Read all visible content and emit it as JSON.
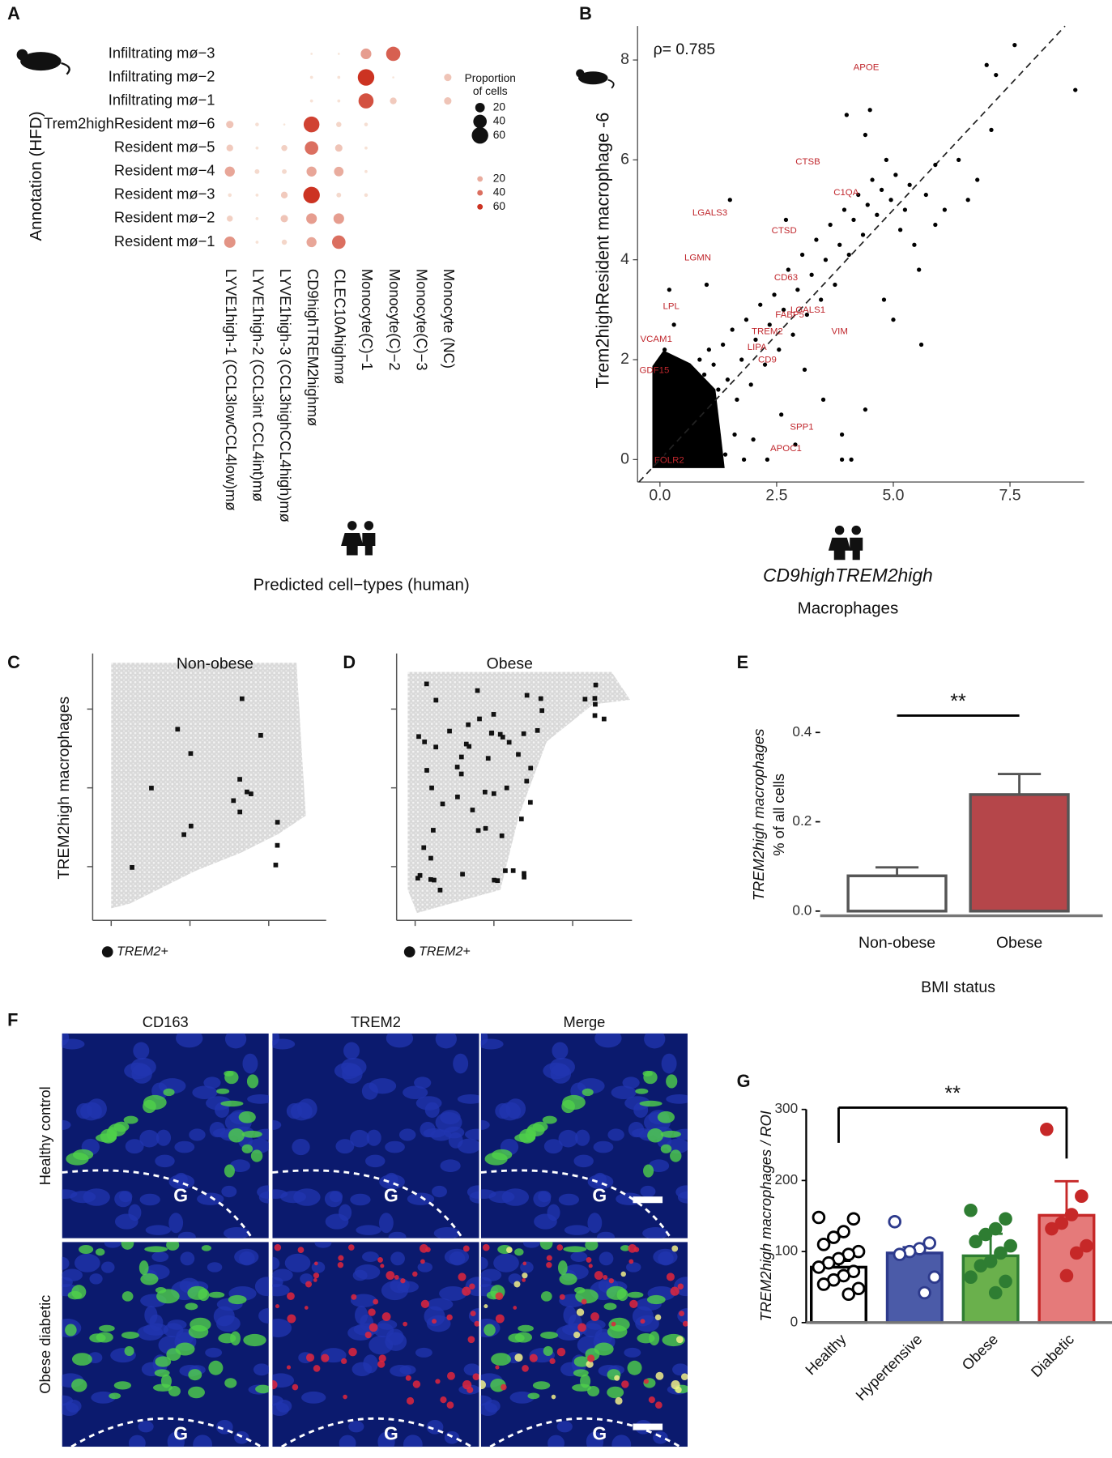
{
  "panel_labels": [
    "A",
    "B",
    "C",
    "D",
    "E",
    "F",
    "G"
  ],
  "chart_data": [
    {
      "type": "dot_matrix",
      "rows": [
        "Infiltrating mø−3",
        "Infiltrating mø−2",
        "Infiltrating mø−1",
        "Trem2highResident mø−6",
        "Resident mø−5",
        "Resident mø−4",
        "Resident mø−3",
        "Resident mø−2",
        "Resident mø−1"
      ],
      "columns": [
        "LYVE1high-1 (CCL3lowCCL4low)mø",
        "LYVE1high-2 (CCL3int CCL4int)mø",
        "LYVE1high-3 (CCL3highCCL4high)mø",
        "CD9highTREM2highmø",
        "CLEC10Ahighmø",
        "Monocyte(C)−1",
        "Monocyte(C)−2",
        "Monocyte(C)−3",
        "Monocyte (NC)"
      ],
      "values": [
        [
          0,
          0,
          0,
          1,
          1,
          25,
          45,
          0,
          0
        ],
        [
          0,
          0,
          0,
          2,
          2,
          60,
          1,
          0,
          12
        ],
        [
          0,
          0,
          0,
          2,
          2,
          50,
          10,
          0,
          12
        ],
        [
          12,
          3,
          1,
          55,
          6,
          3,
          0,
          0,
          0
        ],
        [
          10,
          2,
          8,
          40,
          12,
          2,
          0,
          0,
          0
        ],
        [
          22,
          5,
          5,
          22,
          20,
          2,
          0,
          0,
          0
        ],
        [
          3,
          2,
          10,
          60,
          5,
          3,
          0,
          0,
          0
        ],
        [
          8,
          2,
          12,
          25,
          25,
          0,
          0,
          0,
          0
        ],
        [
          28,
          2,
          6,
          22,
          40,
          0,
          0,
          0,
          0
        ]
      ],
      "xlabel": "Predicted cell−types (human)",
      "ylabel": "Annotation (HFD)",
      "size_legend": {
        "title": [
          "Proportion",
          "of cells"
        ],
        "values": [
          20,
          40,
          60
        ]
      },
      "color_legend": {
        "values": [
          20,
          40,
          60
        ]
      },
      "color_low": "#f8e8dc",
      "color_high": "#cc3322"
    },
    {
      "type": "scatter",
      "x": [
        0.05,
        0.1,
        0.2,
        0.3,
        0.4,
        0.5,
        0.6,
        0.7,
        0.8,
        0.9,
        1.0,
        1.1,
        1.2,
        0.15,
        0.25,
        0.35,
        0.45,
        0.55,
        0.65,
        0.75,
        0.85,
        0.95,
        1.05,
        1.15,
        1.25,
        1.35,
        1.45,
        1.55,
        1.65,
        1.75,
        1.85,
        1.95,
        2.05,
        2.15,
        2.25,
        2.35,
        2.45,
        2.55,
        2.65,
        2.75,
        2.85,
        2.95,
        3.05,
        3.15,
        3.25,
        3.35,
        3.45,
        3.55,
        3.65,
        3.75,
        3.85,
        3.95,
        4.05,
        4.15,
        4.25,
        4.35,
        4.45,
        4.55,
        4.65,
        4.75,
        4.85,
        4.95,
        5.05,
        5.15,
        5.25,
        5.35,
        5.45,
        5.55,
        5.7,
        5.9,
        6.1,
        6.4,
        6.8,
        7.0,
        7.2,
        7.6,
        8.9,
        7.1,
        4.4,
        4.0,
        4.5,
        1.5,
        2.7,
        3.5,
        3.9,
        4.1,
        3.9,
        4.4,
        5.0,
        5.6,
        4.8,
        0.3,
        0.1,
        0.2,
        1.0,
        1.8,
        2.3,
        2.0,
        1.4,
        2.6,
        0.05,
        0.0,
        0.3,
        0.6,
        0.9,
        1.6,
        3.1,
        2.9,
        5.9,
        6.6
      ],
      "y": [
        0.1,
        0.3,
        0.5,
        0.2,
        0.7,
        0.4,
        0.9,
        0.3,
        1.1,
        0.6,
        1.3,
        0.8,
        0.2,
        1.0,
        1.4,
        1.2,
        1.6,
        1.3,
        1.8,
        1.5,
        2.0,
        1.7,
        2.2,
        1.9,
        1.4,
        2.3,
        1.6,
        2.6,
        1.2,
        2.0,
        2.8,
        1.5,
        2.4,
        3.1,
        1.9,
        2.7,
        3.3,
        2.2,
        3.0,
        3.8,
        2.5,
        3.4,
        4.1,
        2.9,
        3.7,
        4.4,
        3.2,
        4.0,
        4.7,
        3.5,
        4.3,
        5.0,
        4.1,
        4.8,
        5.3,
        4.5,
        5.1,
        5.6,
        4.9,
        5.4,
        6.0,
        5.2,
        5.7,
        4.6,
        5.0,
        5.5,
        4.3,
        3.8,
        5.3,
        4.7,
        5.0,
        6.0,
        5.6,
        7.9,
        7.7,
        8.3,
        7.4,
        6.6,
        6.5,
        6.9,
        7.0,
        5.2,
        4.8,
        1.2,
        0.5,
        0.0,
        0.0,
        1.0,
        2.8,
        2.3,
        3.2,
        2.7,
        2.2,
        3.4,
        3.5,
        0.0,
        0.0,
        0.4,
        0.1,
        0.9,
        0.8,
        1.5,
        0.0,
        0.0,
        0.1,
        0.5,
        1.8,
        0.3,
        5.9,
        5.2
      ],
      "xlim": [
        -0.48,
        9.09
      ],
      "ylim": [
        -0.45,
        8.68
      ],
      "xticks": [
        {
          "value": 0,
          "label": "0.0"
        },
        {
          "value": 2.5,
          "label": "2.5"
        },
        {
          "value": 5,
          "label": "5.0"
        },
        {
          "value": 7.5,
          "label": "7.5"
        }
      ],
      "yticks": [
        0,
        2,
        4,
        6,
        8
      ],
      "color": "#000000",
      "identity_line": true,
      "annotation": "ρ= 0.785",
      "ylabel": "Trem2highResident macrophage -6",
      "xlabel": [
        "CD9highTREM2high",
        "Macrophages"
      ],
      "label_color": "#c0272d",
      "gene_labels": [
        {
          "text": "APOE",
          "x": 4.42,
          "y": 7.85
        },
        {
          "text": "CTSB",
          "x": 3.17,
          "y": 5.96
        },
        {
          "text": "C1QA",
          "x": 3.99,
          "y": 5.34
        },
        {
          "text": "LGALS3",
          "x": 1.07,
          "y": 4.94
        },
        {
          "text": "CTSD",
          "x": 2.66,
          "y": 4.58
        },
        {
          "text": "LGMN",
          "x": 0.81,
          "y": 4.04
        },
        {
          "text": "CD63",
          "x": 2.7,
          "y": 3.64
        },
        {
          "text": "LPL",
          "x": 0.24,
          "y": 3.06
        },
        {
          "text": "LGALS1",
          "x": 3.17,
          "y": 2.99
        },
        {
          "text": "FABP5",
          "x": 2.78,
          "y": 2.89
        },
        {
          "text": "TREM2",
          "x": 2.3,
          "y": 2.56
        },
        {
          "text": "VIM",
          "x": 3.85,
          "y": 2.56
        },
        {
          "text": "VCAM1",
          "x": -0.08,
          "y": 2.41
        },
        {
          "text": "LIPA",
          "x": 2.08,
          "y": 2.24
        },
        {
          "text": "CD9",
          "x": 2.3,
          "y": 1.99
        },
        {
          "text": "GDF15",
          "x": -0.12,
          "y": 1.78
        },
        {
          "text": "SPP1",
          "x": 3.04,
          "y": 0.65
        },
        {
          "text": "APOC1",
          "x": 2.7,
          "y": 0.22
        },
        {
          "text": "FOLR2",
          "x": 0.2,
          "y": -0.02
        }
      ]
    },
    {
      "type": "bar",
      "categories": [
        "Non-obese",
        "Obese"
      ],
      "values": [
        0.079,
        0.261
      ],
      "errors": [
        0.019,
        0.046
      ],
      "colors": [
        "#ffffff",
        "#b5464a"
      ],
      "edge_color": "#555555",
      "ylim": [
        -0.0104,
        0.442
      ],
      "yticks": [
        {
          "value": 0,
          "label": "0.0"
        },
        {
          "value": 0.2,
          "label": "0.2"
        },
        {
          "value": 0.4,
          "label": "0.4"
        }
      ],
      "xlabel": "BMI status",
      "ylabel": [
        "TREM2high macrophages",
        "% of all cells"
      ],
      "significance": {
        "label": "**",
        "between": [
          0,
          1
        ]
      }
    },
    {
      "type": "bar",
      "categories": [
        "Healthy",
        "Hypertensive",
        "Obese",
        "Diabetic"
      ],
      "values": [
        78,
        98,
        94,
        151
      ],
      "errors": [
        9,
        8,
        31,
        48
      ],
      "colors": [
        "#ffffff",
        "#4b5ba8",
        "#6ab04c",
        "#e57a7a"
      ],
      "edge_colors": [
        "#000000",
        "#2d3a8c",
        "#2e7d32",
        "#c62828"
      ],
      "points": [
        [
          148,
          146,
          128,
          120,
          110,
          100,
          96,
          90,
          84,
          78,
          72,
          66,
          60,
          54,
          48,
          40
        ],
        [
          142,
          112,
          104,
          100,
          96,
          64,
          42
        ],
        [
          158,
          146,
          132,
          124,
          114,
          108,
          98,
          86,
          80,
          64,
          58,
          42
        ],
        [
          272,
          178,
          152,
          140,
          132,
          108,
          98,
          66
        ]
      ],
      "point_fills": [
        "#ffffff",
        "#ffffff",
        "#2e7d32",
        "#c62828"
      ],
      "ylim": [
        0,
        300
      ],
      "yticks": [
        0,
        100,
        200,
        300
      ],
      "ylabel": "TREM2high macrophages / ROI",
      "significance": {
        "label": "**",
        "between": [
          0,
          3
        ]
      }
    }
  ],
  "maps": [
    {
      "title": "Non-obese"
    },
    {
      "title": "Obese"
    }
  ],
  "map_ylabel": "TREM2high macrophages",
  "map_legend": "TREM2+",
  "micrographs": {
    "columns": [
      "CD163",
      "TREM2",
      "Merge"
    ],
    "rows": [
      "Healthy control",
      "Obese diabetic"
    ],
    "region_label": "G"
  }
}
